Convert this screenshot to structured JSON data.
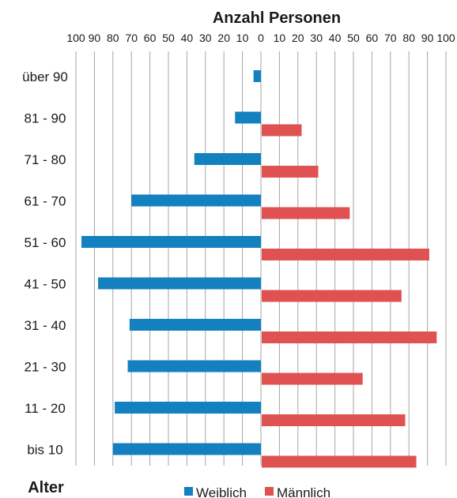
{
  "chart_data": {
    "type": "bar",
    "orientation": "horizontal",
    "layout": "population-pyramid",
    "title": "Anzahl Personen",
    "ylabel": "Alter",
    "categories": [
      "über 90",
      "81 - 90",
      "71 - 80",
      "61 - 70",
      "51 - 60",
      "41 - 50",
      "31 - 40",
      "21 - 30",
      "11 - 20",
      "bis 10"
    ],
    "series": [
      {
        "name": "Weiblich",
        "side": "left",
        "color": "#1380c0",
        "values": [
          4,
          14,
          36,
          70,
          97,
          88,
          71,
          72,
          79,
          80
        ]
      },
      {
        "name": "Männlich",
        "side": "right",
        "color": "#e05252",
        "values": [
          0,
          22,
          31,
          48,
          91,
          76,
          95,
          55,
          78,
          84
        ]
      }
    ],
    "xlim": [
      -100,
      100
    ],
    "xticks": [
      "100",
      "90",
      "80",
      "70",
      "60",
      "50",
      "40",
      "30",
      "20",
      "10",
      "0",
      "10",
      "20",
      "30",
      "40",
      "50",
      "60",
      "70",
      "80",
      "90",
      "100"
    ],
    "grid": true,
    "legend": "bottom"
  }
}
